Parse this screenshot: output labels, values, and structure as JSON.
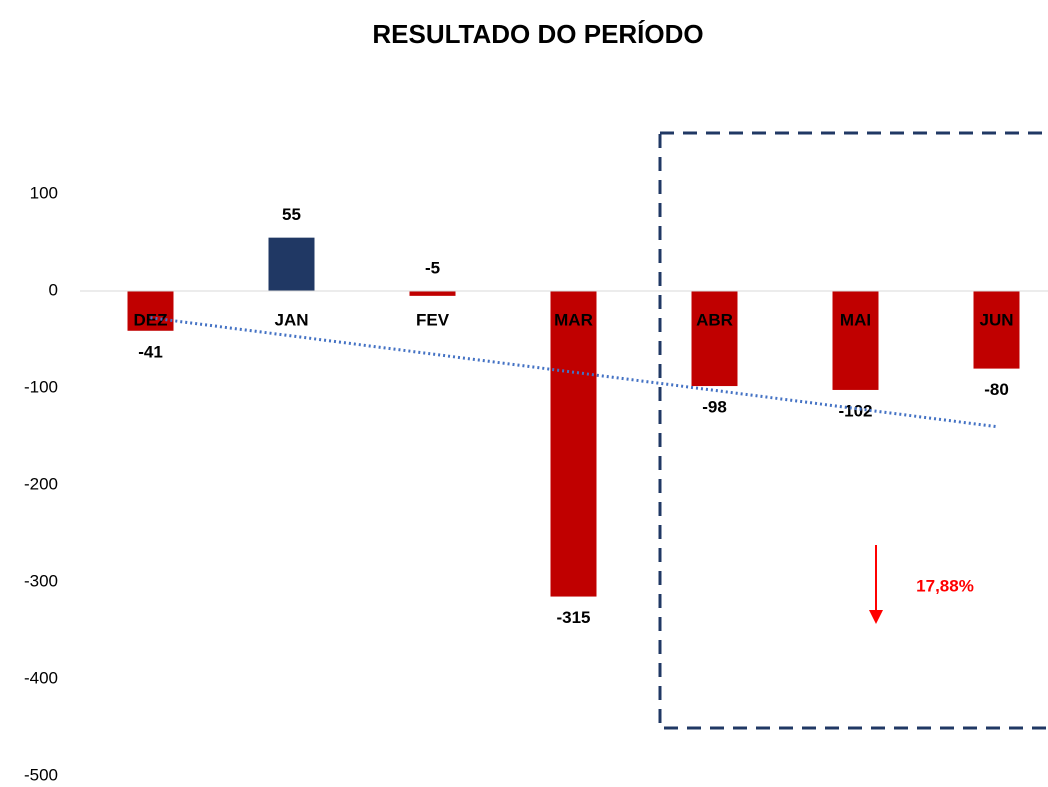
{
  "chart_data": {
    "type": "bar",
    "title": "RESULTADO DO PERÍODO",
    "categories": [
      "DEZ",
      "JAN",
      "FEV",
      "MAR",
      "ABR",
      "MAI",
      "JUN"
    ],
    "values": [
      -41,
      55,
      -5,
      -315,
      -98,
      -102,
      -80
    ],
    "color": "#203864",
    "negative_color": "#c00000",
    "ylim": [
      -500,
      100
    ],
    "yticks": [
      -500,
      -400,
      -300,
      -200,
      -100,
      0,
      100
    ],
    "grid": false,
    "trendline": true,
    "trendline_color": "#4472c4",
    "annotation": {
      "text": "17,88%",
      "color": "#ff0000"
    }
  }
}
